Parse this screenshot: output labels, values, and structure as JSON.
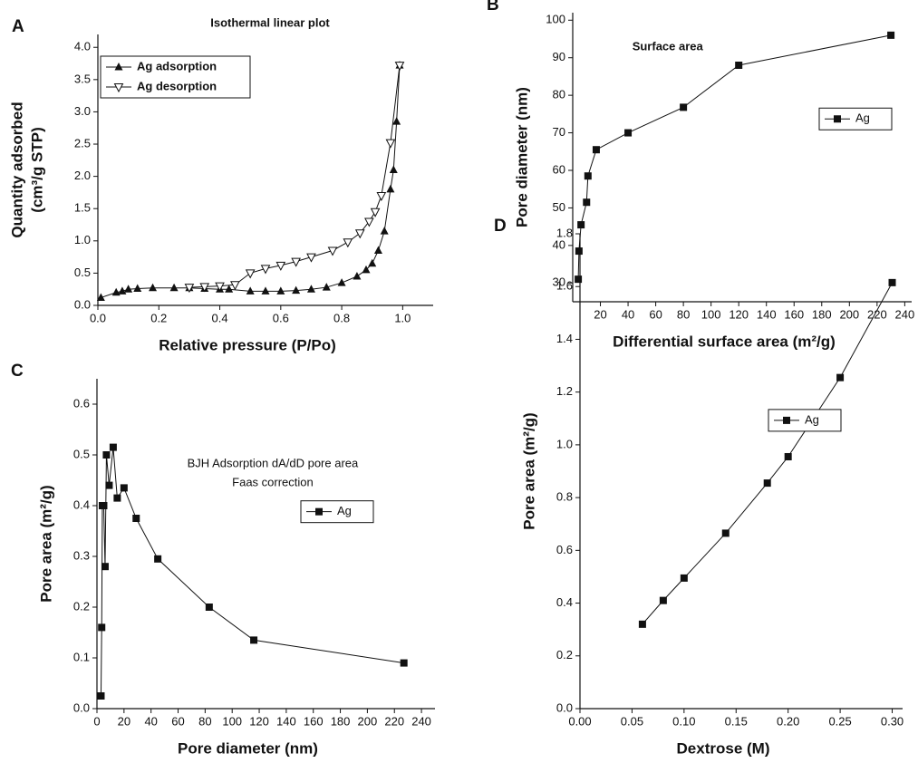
{
  "chart_data": [
    {
      "type": "line",
      "panel": "A",
      "title": "Isothermal linear plot",
      "xlabel": "Relative pressure (P/Po)",
      "ylabel": [
        "Quantity adsorbed",
        "(cm³/g STP)"
      ],
      "xlim": [
        0,
        1.1
      ],
      "ylim": [
        0,
        4.2
      ],
      "xticks": [
        {
          "value": 0,
          "label": "0.0"
        },
        0.2,
        0.4,
        0.6,
        0.8,
        {
          "value": 1,
          "label": "1.0"
        }
      ],
      "yticks": [
        {
          "value": 0,
          "label": "0.0"
        },
        0.5,
        {
          "value": 1,
          "label": "1.0"
        },
        1.5,
        {
          "value": 2,
          "label": "2.0"
        },
        2.5,
        {
          "value": 3,
          "label": "3.0"
        },
        3.5,
        {
          "value": 4,
          "label": "4.0"
        }
      ],
      "legend": "upper left",
      "series": [
        {
          "name": "Ag adsorption",
          "color": "#111111",
          "marker": "triangle-up",
          "x": [
            0.01,
            0.06,
            0.08,
            0.1,
            0.13,
            0.18,
            0.25,
            0.3,
            0.35,
            0.4,
            0.43,
            0.5,
            0.55,
            0.6,
            0.65,
            0.7,
            0.75,
            0.8,
            0.85,
            0.88,
            0.9,
            0.92,
            0.94,
            0.96,
            0.97,
            0.98,
            0.99
          ],
          "values": [
            0.12,
            0.2,
            0.22,
            0.25,
            0.26,
            0.27,
            0.27,
            0.27,
            0.26,
            0.25,
            0.25,
            0.22,
            0.22,
            0.22,
            0.23,
            0.25,
            0.28,
            0.35,
            0.45,
            0.55,
            0.65,
            0.85,
            1.15,
            1.8,
            2.1,
            2.85,
            3.72
          ]
        },
        {
          "name": "Ag desorption",
          "color": "#111111",
          "marker": "triangle-down",
          "x": [
            0.99,
            0.96,
            0.93,
            0.91,
            0.89,
            0.86,
            0.82,
            0.77,
            0.7,
            0.65,
            0.6,
            0.55,
            0.5,
            0.45,
            0.4,
            0.35,
            0.3
          ],
          "values": [
            3.72,
            2.52,
            1.7,
            1.45,
            1.3,
            1.12,
            0.98,
            0.85,
            0.75,
            0.68,
            0.62,
            0.57,
            0.5,
            0.32,
            0.3,
            0.29,
            0.28
          ]
        }
      ]
    },
    {
      "type": "line",
      "panel": "B",
      "title": "Surface area",
      "xlabel": "Differential surface area (m²/g)",
      "ylabel": "Pore diameter (nm)",
      "xlim": [
        0,
        245
      ],
      "ylim": [
        25,
        102
      ],
      "xticks": [
        20,
        40,
        60,
        80,
        100,
        120,
        140,
        160,
        180,
        200,
        220,
        240
      ],
      "yticks": [
        30,
        40,
        50,
        60,
        70,
        80,
        90,
        100
      ],
      "legend": "right",
      "series": [
        {
          "name": "Ag",
          "color": "#111111",
          "marker": "square",
          "x": [
            4,
            4.5,
            6,
            10,
            11,
            17,
            40,
            80,
            120,
            230
          ],
          "values": [
            31,
            38.5,
            45.5,
            51.5,
            58.5,
            65.5,
            70,
            76.8,
            88,
            96
          ]
        }
      ]
    },
    {
      "type": "line",
      "panel": "C",
      "annotations": [
        "BJH Adsorption dA/dD pore area",
        "Faas correction"
      ],
      "xlabel": "Pore diameter (nm)",
      "ylabel": "Pore area (m²/g)",
      "xlim": [
        0,
        250
      ],
      "ylim": [
        0,
        0.65
      ],
      "xticks": [
        0,
        20,
        40,
        60,
        80,
        100,
        120,
        140,
        160,
        180,
        200,
        220,
        240
      ],
      "yticks": [
        {
          "value": 0,
          "label": "0.0"
        },
        0.1,
        0.2,
        0.3,
        0.4,
        0.5,
        0.6
      ],
      "legend": "upper right",
      "series": [
        {
          "name": "Ag",
          "color": "#111111",
          "marker": "square",
          "x": [
            3,
            3.5,
            4,
            5,
            6,
            7,
            9,
            12,
            15,
            20,
            29,
            45,
            83,
            116,
            227
          ],
          "values": [
            0.025,
            0.16,
            0.4,
            0.4,
            0.28,
            0.5,
            0.44,
            0.515,
            0.415,
            0.435,
            0.375,
            0.295,
            0.2,
            0.135,
            0.09
          ]
        }
      ]
    },
    {
      "type": "line",
      "panel": "D",
      "xlabel": "Dextrose (M)",
      "ylabel": "Pore area (m²/g)",
      "xlim": [
        0,
        0.31
      ],
      "ylim": [
        0,
        1.8
      ],
      "xticks": [
        {
          "value": 0,
          "label": "0.00"
        },
        0.05,
        {
          "value": 0.1,
          "label": "0.10"
        },
        0.15,
        {
          "value": 0.2,
          "label": "0.20"
        },
        0.25,
        {
          "value": 0.3,
          "label": "0.30"
        }
      ],
      "yticks": [
        {
          "value": 0,
          "label": "0.0"
        },
        0.2,
        0.4,
        0.6,
        0.8,
        {
          "value": 1,
          "label": "1.0"
        },
        1.2,
        1.4,
        1.6,
        1.8
      ],
      "legend": "upper right",
      "series": [
        {
          "name": "Ag",
          "color": "#111111",
          "marker": "square",
          "x": [
            0.06,
            0.08,
            0.1,
            0.14,
            0.18,
            0.2,
            0.25,
            0.3
          ],
          "values": [
            0.32,
            0.41,
            0.495,
            0.665,
            0.855,
            0.955,
            1.255,
            1.615
          ]
        }
      ]
    }
  ]
}
